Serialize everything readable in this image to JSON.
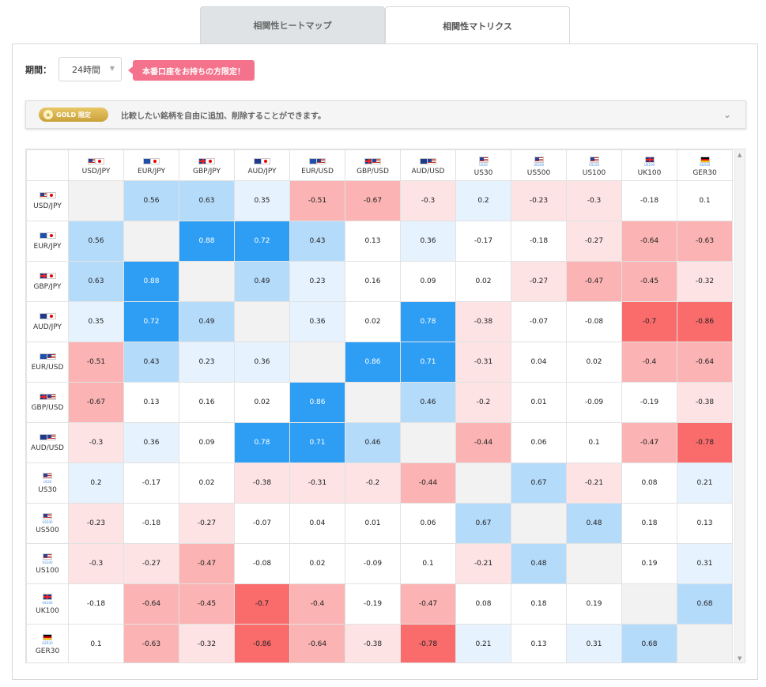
{
  "tabs": [
    {
      "label": "相関性ヒートマップ",
      "active": false
    },
    {
      "label": "相関性マトリクス",
      "active": true
    }
  ],
  "period": {
    "label": "期間：",
    "value": "24時間"
  },
  "promo": "本番口座をお持ちの方限定！",
  "gold": {
    "badge": "GOLD 限定",
    "text": "比較したい銘柄を自由に追加、削除することができます。"
  },
  "colors": {
    "pos_strong": "#2e9ef5",
    "pos_mid": "#b5dbfb",
    "pos_light": "#e6f2fd",
    "neg_strong": "#fa6b6b",
    "neg_mid": "#fbb3b3",
    "neg_light": "#fde3e3",
    "diag": "#f2f2f2"
  },
  "matrix": {
    "symbols": [
      {
        "name": "USD/JPY",
        "flags": [
          "us",
          "jp"
        ],
        "sub": ""
      },
      {
        "name": "EUR/JPY",
        "flags": [
          "eu",
          "jp"
        ],
        "sub": ""
      },
      {
        "name": "GBP/JPY",
        "flags": [
          "gb",
          "jp"
        ],
        "sub": ""
      },
      {
        "name": "AUD/JPY",
        "flags": [
          "au",
          "jp"
        ],
        "sub": ""
      },
      {
        "name": "EUR/USD",
        "flags": [
          "eu",
          "us"
        ],
        "sub": ""
      },
      {
        "name": "GBP/USD",
        "flags": [
          "gb",
          "us"
        ],
        "sub": ""
      },
      {
        "name": "AUD/USD",
        "flags": [
          "au",
          "us"
        ],
        "sub": ""
      },
      {
        "name": "US30",
        "flags": [
          "us"
        ],
        "sub": "US30"
      },
      {
        "name": "US500",
        "flags": [
          "us"
        ],
        "sub": "US500"
      },
      {
        "name": "US100",
        "flags": [
          "us"
        ],
        "sub": "US100"
      },
      {
        "name": "UK100",
        "flags": [
          "gb"
        ],
        "sub": "UK100"
      },
      {
        "name": "GER30",
        "flags": [
          "de"
        ],
        "sub": "GER30"
      }
    ],
    "values": [
      [
        null,
        0.56,
        0.63,
        0.35,
        -0.51,
        -0.67,
        -0.3,
        0.2,
        -0.23,
        -0.3,
        -0.18,
        0.1
      ],
      [
        0.56,
        null,
        0.88,
        0.72,
        0.43,
        0.13,
        0.36,
        -0.17,
        -0.18,
        -0.27,
        -0.64,
        -0.63
      ],
      [
        0.63,
        0.88,
        null,
        0.49,
        0.23,
        0.16,
        0.09,
        0.02,
        -0.27,
        -0.47,
        -0.45,
        -0.32
      ],
      [
        0.35,
        0.72,
        0.49,
        null,
        0.36,
        0.02,
        0.78,
        -0.38,
        -0.07,
        -0.08,
        -0.7,
        -0.86
      ],
      [
        -0.51,
        0.43,
        0.23,
        0.36,
        null,
        0.86,
        0.71,
        -0.31,
        0.04,
        0.02,
        -0.4,
        -0.64
      ],
      [
        -0.67,
        0.13,
        0.16,
        0.02,
        0.86,
        null,
        0.46,
        -0.2,
        0.01,
        -0.09,
        -0.19,
        -0.38
      ],
      [
        -0.3,
        0.36,
        0.09,
        0.78,
        0.71,
        0.46,
        null,
        -0.44,
        0.06,
        0.1,
        -0.47,
        -0.78
      ],
      [
        0.2,
        -0.17,
        0.02,
        -0.38,
        -0.31,
        -0.2,
        -0.44,
        null,
        0.67,
        -0.21,
        0.08,
        0.21
      ],
      [
        -0.23,
        -0.18,
        -0.27,
        -0.07,
        0.04,
        0.01,
        0.06,
        0.67,
        null,
        0.48,
        0.18,
        0.13
      ],
      [
        -0.3,
        -0.27,
        -0.47,
        -0.08,
        0.02,
        -0.09,
        0.1,
        -0.21,
        0.48,
        null,
        0.19,
        0.31
      ],
      [
        -0.18,
        -0.64,
        -0.45,
        -0.7,
        -0.4,
        -0.19,
        -0.47,
        0.08,
        0.18,
        0.19,
        null,
        0.68
      ],
      [
        0.1,
        -0.63,
        -0.32,
        -0.86,
        -0.64,
        -0.38,
        -0.78,
        0.21,
        0.13,
        0.31,
        0.68,
        null
      ]
    ]
  }
}
